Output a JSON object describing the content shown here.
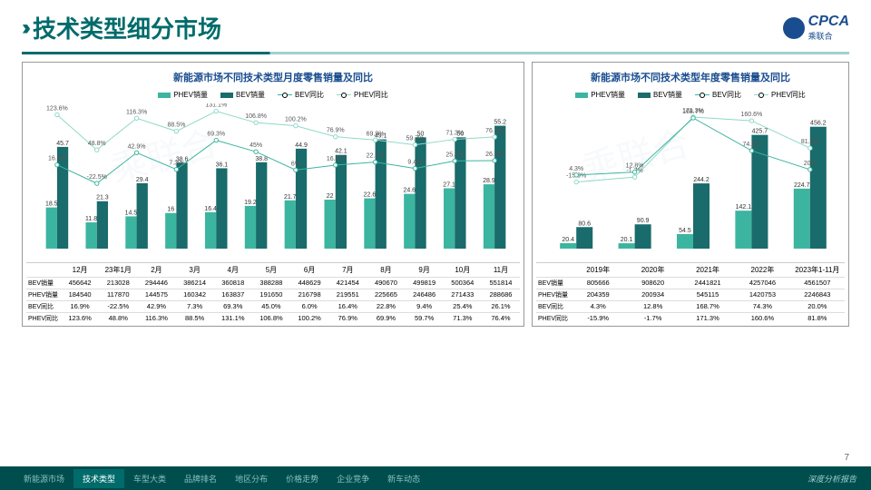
{
  "header": {
    "title": "技术类型细分市场",
    "logo_text": "CPCA",
    "logo_sub": "乘联合"
  },
  "colors": {
    "phev_bar": "#3cb5a0",
    "bev_bar": "#1a6b6b",
    "bev_line": "#3cb5a0",
    "phev_line": "#8fd9c9",
    "accent": "#006b6b",
    "title_color": "#1a4d8f"
  },
  "legend": {
    "phev_bar": "PHEV销量",
    "bev_bar": "BEV销量",
    "bev_line": "BEV同比",
    "phev_line": "PHEV同比"
  },
  "monthly": {
    "title": "新能源市场不同技术类型月度零售销量及同比",
    "categories": [
      "12月",
      "23年1月",
      "2月",
      "3月",
      "4月",
      "5月",
      "6月",
      "7月",
      "8月",
      "9月",
      "10月",
      "11月"
    ],
    "phev_sales_wan": [
      18.5,
      11.8,
      14.5,
      16.0,
      16.4,
      19.2,
      21.7,
      22.0,
      22.6,
      24.6,
      27.1,
      28.9
    ],
    "bev_sales_wan": [
      45.7,
      21.3,
      29.4,
      38.6,
      36.1,
      38.8,
      44.9,
      42.1,
      49.1,
      50.0,
      50.0,
      55.2
    ],
    "bev_yoy": [
      16.9,
      -22.5,
      42.9,
      7.3,
      69.3,
      45.0,
      6.0,
      16.4,
      22.8,
      9.4,
      25.4,
      26.1
    ],
    "phev_yoy": [
      123.6,
      48.8,
      116.3,
      88.5,
      131.1,
      106.8,
      100.2,
      76.9,
      69.9,
      59.7,
      71.3,
      76.4
    ],
    "table": {
      "rows": [
        "BEV销量",
        "PHEV销量",
        "BEV同比",
        "PHEV同比"
      ],
      "bev_sales": [
        456642,
        213028,
        294446,
        386214,
        360818,
        388288,
        448629,
        421454,
        490670,
        499819,
        500364,
        551814
      ],
      "phev_sales": [
        184540,
        117870,
        144575,
        160342,
        163837,
        191650,
        216798,
        219551,
        225665,
        246486,
        271433,
        288686
      ],
      "bev_yoy": [
        "16.9%",
        "-22.5%",
        "42.9%",
        "7.3%",
        "69.3%",
        "45.0%",
        "6.0%",
        "16.4%",
        "22.8%",
        "9.4%",
        "25.4%",
        "26.1%"
      ],
      "phev_yoy": [
        "123.6%",
        "48.8%",
        "116.3%",
        "88.5%",
        "131.1%",
        "106.8%",
        "100.2%",
        "76.9%",
        "69.9%",
        "59.7%",
        "71.3%",
        "76.4%"
      ]
    },
    "bar_max": 60,
    "line_min": -30,
    "line_max": 140
  },
  "yearly": {
    "title": "新能源市场不同技术类型年度零售销量及同比",
    "categories": [
      "2019年",
      "2020年",
      "2021年",
      "2022年",
      "2023年1-11月"
    ],
    "phev_sales_wan": [
      20.4,
      20.1,
      54.5,
      142.1,
      224.7
    ],
    "bev_sales_wan": [
      80.6,
      90.9,
      244.2,
      425.7,
      456.2
    ],
    "bev_yoy": [
      4.3,
      12.8,
      168.7,
      74.3,
      20.0
    ],
    "phev_yoy": [
      -15.9,
      -1.7,
      171.3,
      160.6,
      81.8
    ],
    "table": {
      "rows": [
        "BEV销量",
        "PHEV销量",
        "BEV同比",
        "PHEV同比"
      ],
      "bev_sales": [
        805666,
        908620,
        2441821,
        4257046,
        4561507
      ],
      "phev_sales": [
        204359,
        200934,
        545115,
        1420753,
        2246843
      ],
      "bev_yoy": [
        "4.3%",
        "12.8%",
        "168.7%",
        "74.3%",
        "20.0%"
      ],
      "phev_yoy": [
        "-15.9%",
        "-1.7%",
        "171.3%",
        "160.6%",
        "81.8%"
      ]
    },
    "bar_max": 500,
    "line_min": -30,
    "line_max": 200
  },
  "footer": {
    "tabs": [
      "新能源市场",
      "技术类型",
      "车型大类",
      "品牌排名",
      "地区分布",
      "价格走势",
      "企业竞争",
      "新车动态"
    ],
    "active": 1,
    "right": "深度分析报告"
  },
  "page": "7"
}
